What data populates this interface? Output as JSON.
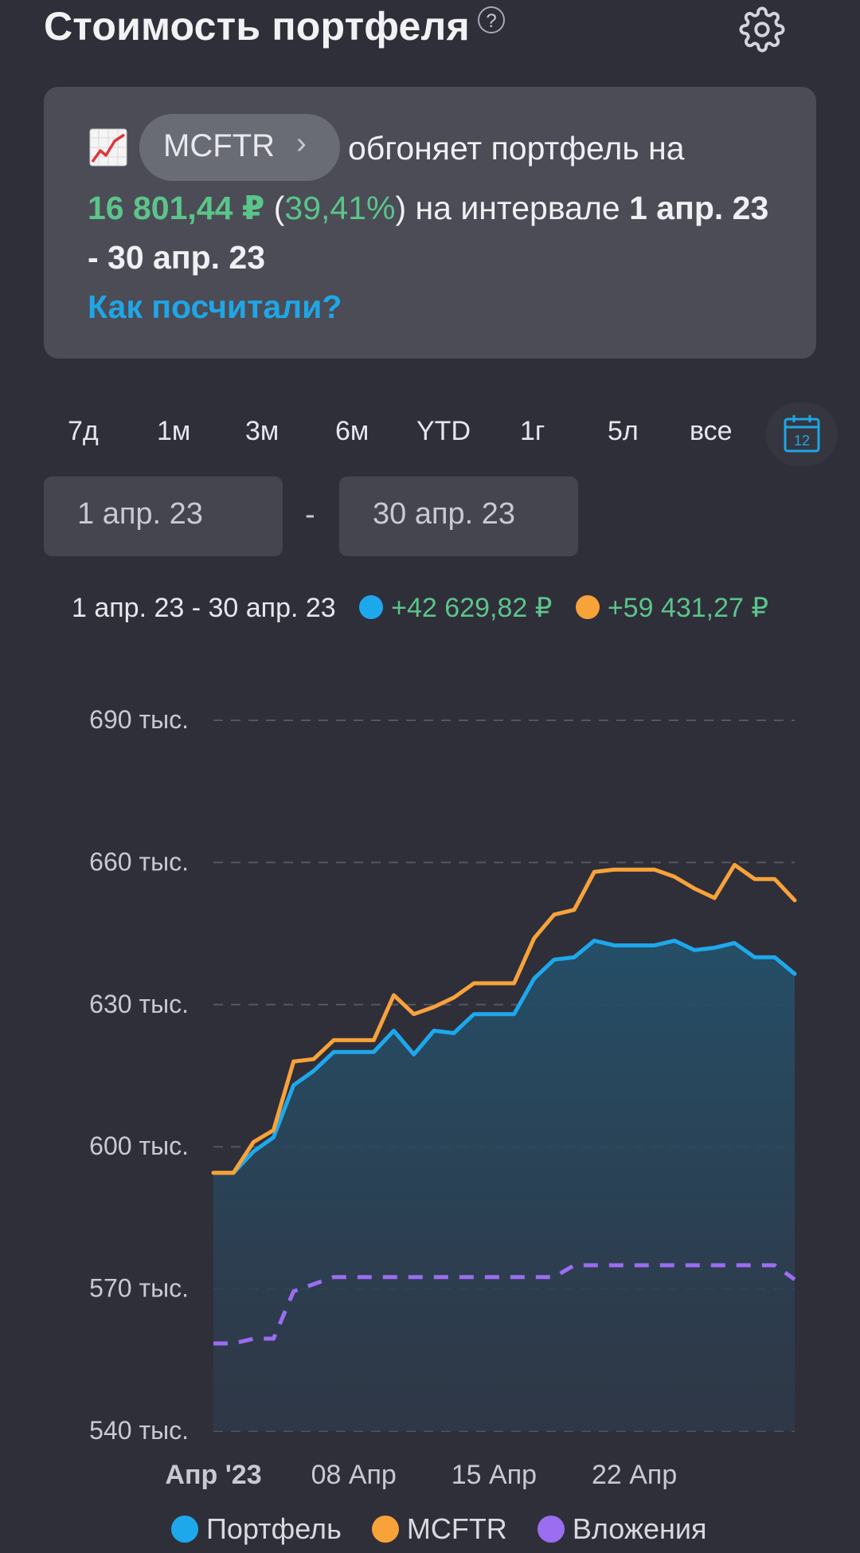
{
  "header": {
    "title": "Стоимость портфеля",
    "help_glyph": "?"
  },
  "card": {
    "ticker": "MCFTR",
    "text_1": "обгоняет портфель на",
    "amount": "16 801,44 ₽",
    "paren_open": "(",
    "percent": "39,41%",
    "paren_close": ")",
    "text_2": "на интервале",
    "range_start": "1 апр. 23",
    "range_end": "- 30 апр. 23",
    "link": "Как посчитали?"
  },
  "periods": [
    "7д",
    "1м",
    "3м",
    "6м",
    "YTD",
    "1г",
    "5л",
    "все"
  ],
  "calendar_day": "12",
  "date_from": "1 апр. 23",
  "date_separator": "-",
  "date_to": "30 апр. 23",
  "summary": {
    "range": "1 апр. 23 - 30 апр. 23",
    "portfolio_change": "+42 629,82 ₽",
    "benchmark_change": "+59 431,27 ₽"
  },
  "colors": {
    "portfolio": "#1ea8ec",
    "benchmark": "#f8a23a",
    "investments": "#9b6df0",
    "positive": "#5cc48a",
    "accent": "#1fa6e6"
  },
  "chart_data": {
    "type": "line",
    "ylim": [
      540000,
      690000
    ],
    "yticks": [
      690000,
      660000,
      630000,
      600000,
      570000,
      540000
    ],
    "ytick_labels": [
      "690 тыс.",
      "660 тыс.",
      "630 тыс.",
      "600 тыс.",
      "570 тыс.",
      "540 тыс."
    ],
    "x": [
      1,
      2,
      3,
      4,
      5,
      6,
      7,
      8,
      9,
      10,
      11,
      12,
      13,
      14,
      15,
      16,
      17,
      18,
      19,
      20,
      21,
      22,
      23,
      24,
      25,
      26,
      27,
      28,
      29,
      30
    ],
    "xtick_positions": [
      1,
      8,
      15,
      22
    ],
    "xtick_labels": [
      "Апр '23",
      "08 Апр",
      "15 Апр",
      "22 Апр"
    ],
    "grid": true,
    "legend_position": "bottom",
    "series": [
      {
        "name": "Портфель",
        "style": "solid-area",
        "values": [
          594500,
          594500,
          599000,
          602000,
          613000,
          616000,
          620000,
          620000,
          620000,
          624500,
          619500,
          624500,
          624000,
          628000,
          628000,
          628000,
          635500,
          639500,
          640000,
          643500,
          642500,
          642500,
          642500,
          643500,
          641500,
          642000,
          643000,
          640000,
          640000,
          636500
        ]
      },
      {
        "name": "MCFTR",
        "style": "solid",
        "values": [
          594500,
          594500,
          601000,
          603500,
          618000,
          618500,
          622500,
          622500,
          622500,
          632000,
          628000,
          629500,
          631500,
          634500,
          634500,
          634500,
          644000,
          649000,
          650000,
          658000,
          658500,
          658500,
          658500,
          657000,
          654500,
          652500,
          659500,
          656500,
          656500,
          652000
        ]
      },
      {
        "name": "Вложения",
        "style": "dashed",
        "values": [
          558500,
          558500,
          559500,
          559500,
          569500,
          571000,
          572500,
          572500,
          572500,
          572500,
          572500,
          572500,
          572500,
          572500,
          572500,
          572500,
          572500,
          572500,
          575000,
          575000,
          575000,
          575000,
          575000,
          575000,
          575000,
          575000,
          575000,
          575000,
          575000,
          572000
        ]
      }
    ]
  }
}
